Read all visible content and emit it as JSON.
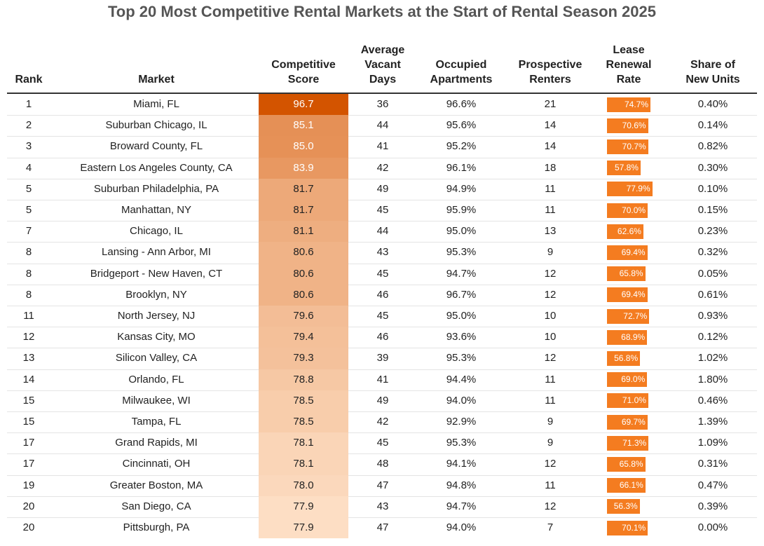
{
  "title": "Top 20 Most Competitive Rental Markets at the Start of Rental Season 2025",
  "columns": [
    "Rank",
    "Market",
    "Competitive Score",
    "Average Vacant Days",
    "Occupied Apartments",
    "Prospective Renters",
    "Lease Renewal Rate",
    "Share of New Units"
  ],
  "rows": [
    [
      "1",
      "Miami, FL",
      "96.7",
      "36",
      "96.6%",
      "21",
      "74.7%",
      "0.40%"
    ],
    [
      "2",
      "Suburban Chicago, IL",
      "85.1",
      "44",
      "95.6%",
      "14",
      "70.6%",
      "0.14%"
    ],
    [
      "3",
      "Broward County, FL",
      "85.0",
      "41",
      "95.2%",
      "14",
      "70.7%",
      "0.82%"
    ],
    [
      "4",
      "Eastern Los Angeles County, CA",
      "83.9",
      "42",
      "96.1%",
      "18",
      "57.8%",
      "0.30%"
    ],
    [
      "5",
      "Suburban Philadelphia, PA",
      "81.7",
      "49",
      "94.9%",
      "11",
      "77.9%",
      "0.10%"
    ],
    [
      "5",
      "Manhattan, NY",
      "81.7",
      "45",
      "95.9%",
      "11",
      "70.0%",
      "0.15%"
    ],
    [
      "7",
      "Chicago, IL",
      "81.1",
      "44",
      "95.0%",
      "13",
      "62.6%",
      "0.23%"
    ],
    [
      "8",
      "Lansing - Ann Arbor, MI",
      "80.6",
      "43",
      "95.3%",
      "9",
      "69.4%",
      "0.32%"
    ],
    [
      "8",
      "Bridgeport - New Haven, CT",
      "80.6",
      "45",
      "94.7%",
      "12",
      "65.8%",
      "0.05%"
    ],
    [
      "8",
      "Brooklyn, NY",
      "80.6",
      "46",
      "96.7%",
      "12",
      "69.4%",
      "0.61%"
    ],
    [
      "11",
      "North Jersey, NJ",
      "79.6",
      "45",
      "95.0%",
      "10",
      "72.7%",
      "0.93%"
    ],
    [
      "12",
      "Kansas City, MO",
      "79.4",
      "46",
      "93.6%",
      "10",
      "68.9%",
      "0.12%"
    ],
    [
      "13",
      "Silicon Valley, CA",
      "79.3",
      "39",
      "95.3%",
      "12",
      "56.8%",
      "1.02%"
    ],
    [
      "14",
      "Orlando, FL",
      "78.8",
      "41",
      "94.4%",
      "11",
      "69.0%",
      "1.80%"
    ],
    [
      "15",
      "Milwaukee, WI",
      "78.5",
      "49",
      "94.0%",
      "11",
      "71.0%",
      "0.46%"
    ],
    [
      "15",
      "Tampa, FL",
      "78.5",
      "42",
      "92.9%",
      "9",
      "69.7%",
      "1.39%"
    ],
    [
      "17",
      "Grand Rapids, MI",
      "78.1",
      "45",
      "95.3%",
      "9",
      "71.3%",
      "1.09%"
    ],
    [
      "17",
      "Cincinnati, OH",
      "78.1",
      "48",
      "94.1%",
      "12",
      "65.8%",
      "0.31%"
    ],
    [
      "19",
      "Greater Boston, MA",
      "78.0",
      "47",
      "94.8%",
      "11",
      "66.1%",
      "0.47%"
    ],
    [
      "20",
      "San Diego, CA",
      "77.9",
      "43",
      "94.7%",
      "12",
      "56.3%",
      "0.39%"
    ],
    [
      "20",
      "Pittsburgh, PA",
      "77.9",
      "47",
      "94.0%",
      "7",
      "70.1%",
      "0.00%"
    ]
  ]
}
